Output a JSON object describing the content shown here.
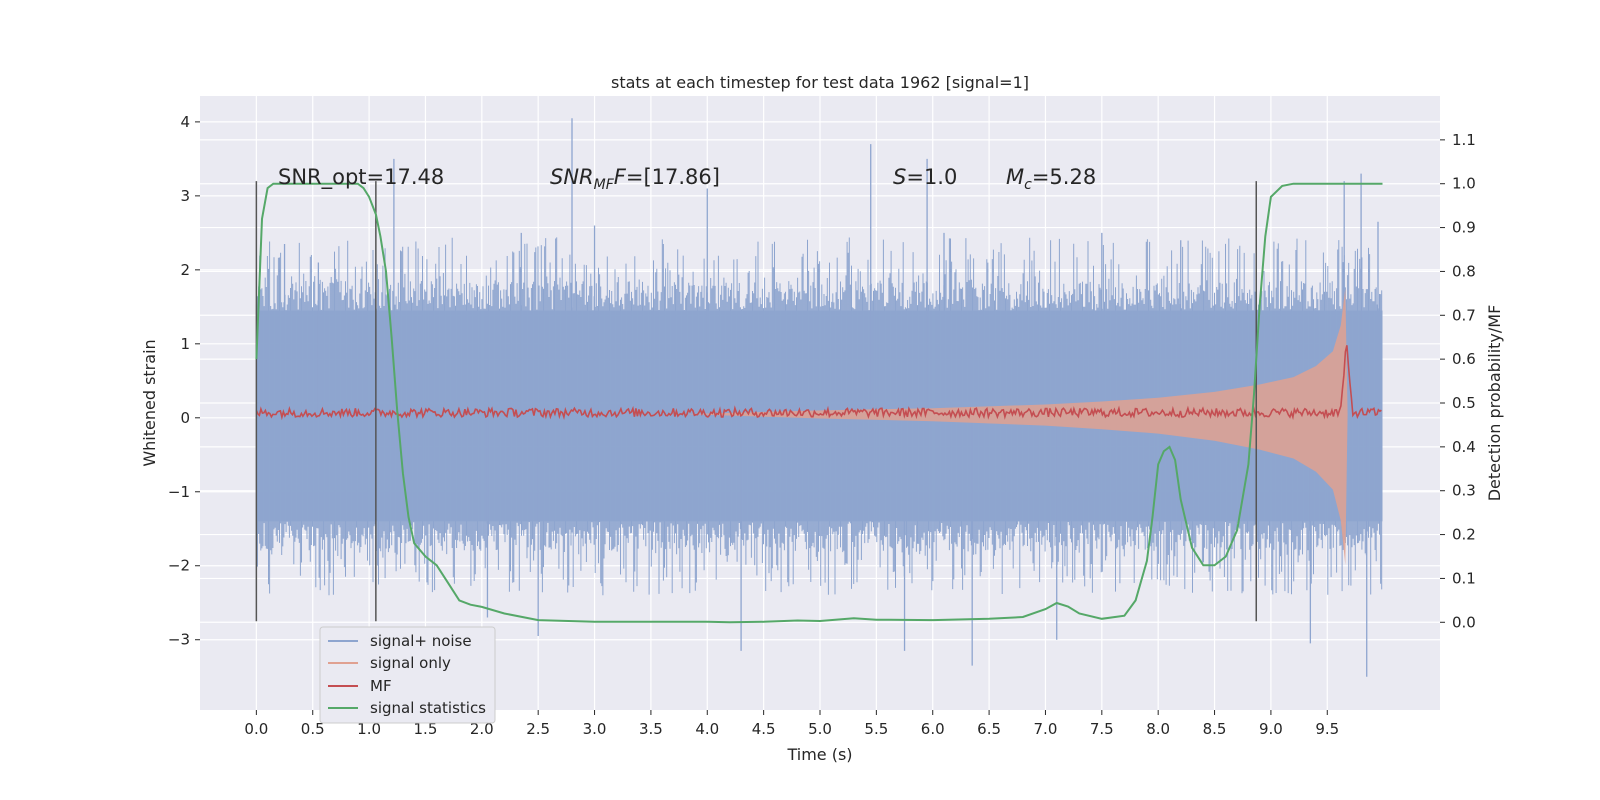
{
  "chart_data": {
    "type": "line",
    "title": "stats at each timestep for test data 1962 [signal=1]",
    "xlabel": "Time (s)",
    "ylabel": "Whitened strain",
    "ylabel_right": "Detection probability/MF",
    "xlim": [
      -0.5,
      10.5
    ],
    "ylim": [
      -3.95,
      4.35
    ],
    "ylim_right": [
      -0.2,
      1.2
    ],
    "x_ticks": [
      "0.0",
      "0.5",
      "1.0",
      "1.5",
      "2.0",
      "2.5",
      "3.0",
      "3.5",
      "4.0",
      "4.5",
      "5.0",
      "5.5",
      "6.0",
      "6.5",
      "7.0",
      "7.5",
      "8.0",
      "8.5",
      "9.0",
      "9.5"
    ],
    "x_tick_values": [
      0.0,
      0.5,
      1.0,
      1.5,
      2.0,
      2.5,
      3.0,
      3.5,
      4.0,
      4.5,
      5.0,
      5.5,
      6.0,
      6.5,
      7.0,
      7.5,
      8.0,
      8.5,
      9.0,
      9.5
    ],
    "y_ticks": [
      "4",
      "3",
      "2",
      "1",
      "0",
      "−1",
      "−2",
      "−3"
    ],
    "y_tick_values": [
      4,
      3,
      2,
      1,
      0,
      -1,
      -2,
      -3
    ],
    "y_right_ticks": [
      "1.1",
      "1.0",
      "0.9",
      "0.8",
      "0.7",
      "0.6",
      "0.5",
      "0.4",
      "0.3",
      "0.2",
      "0.1",
      "0.0"
    ],
    "y_right_tick_values": [
      1.1,
      1.0,
      0.9,
      0.8,
      0.7,
      0.6,
      0.5,
      0.4,
      0.3,
      0.2,
      0.1,
      0.0
    ],
    "grid": true,
    "legend_position": "lower-left",
    "annotations": [
      {
        "id": "snr_opt",
        "text": "SNR_opt=17.48",
        "x": 0.2,
        "y": 3.22
      },
      {
        "id": "snr_mf",
        "prefix": "SNR",
        "sub": "MF",
        "suffix": "=[17.86]",
        "x": 2.6,
        "y": 3.22
      },
      {
        "id": "s",
        "prefix": "S",
        "suffix": "=1.0",
        "x": 5.6,
        "y": 3.22
      },
      {
        "id": "mc",
        "prefix": "M",
        "sub": "c",
        "suffix": "=5.28",
        "x": 6.6,
        "y": 3.22
      }
    ],
    "vertical_markers": [
      0.0,
      1.06,
      8.87
    ],
    "vertical_marker_range": [
      -2.75,
      3.2
    ],
    "series": [
      {
        "name": "signal+ noise",
        "color": "#8ea5cf",
        "axis": "left",
        "style": "noise-band",
        "x_range": [
          0.0,
          9.99
        ],
        "dense_envelope": [
          [
            0.0,
            -1.4,
            1.45
          ],
          [
            9.99,
            -1.4,
            1.45
          ]
        ],
        "spikes": [
          [
            0.25,
            2.35
          ],
          [
            0.55,
            2.1
          ],
          [
            1.22,
            3.5
          ],
          [
            2.05,
            -2.7
          ],
          [
            2.35,
            2.5
          ],
          [
            2.5,
            -2.95
          ],
          [
            2.8,
            4.05
          ],
          [
            3.0,
            2.6
          ],
          [
            4.0,
            3.1
          ],
          [
            4.3,
            -3.15
          ],
          [
            5.45,
            3.7
          ],
          [
            5.75,
            -3.15
          ],
          [
            5.95,
            3.5
          ],
          [
            6.1,
            2.5
          ],
          [
            6.35,
            -3.35
          ],
          [
            7.1,
            -3.0
          ],
          [
            7.5,
            2.5
          ],
          [
            8.2,
            2.4
          ],
          [
            9.35,
            -3.05
          ],
          [
            9.65,
            3.2
          ],
          [
            9.8,
            3.3
          ],
          [
            9.85,
            -3.5
          ],
          [
            9.95,
            2.65
          ]
        ]
      },
      {
        "name": "signal only",
        "color": "#e0a191",
        "axis": "left",
        "style": "chirp",
        "x": [
          3.8,
          5.0,
          6.0,
          7.0,
          7.5,
          8.0,
          8.5,
          8.9,
          9.2,
          9.4,
          9.55,
          9.62,
          9.66,
          9.68
        ],
        "amplitude": [
          0.0,
          0.05,
          0.08,
          0.13,
          0.17,
          0.22,
          0.3,
          0.4,
          0.5,
          0.65,
          0.85,
          1.2,
          1.7,
          0.0
        ]
      },
      {
        "name": "MF",
        "color": "#c44e52",
        "axis": "left",
        "style": "jitter",
        "x_range": [
          0.0,
          9.99
        ],
        "center": 0.07,
        "jitter": 0.06,
        "peak": [
          9.67,
          1.0
        ]
      },
      {
        "name": "signal statistics",
        "color": "#55a868",
        "axis": "right",
        "x": [
          0.0,
          0.05,
          0.1,
          0.15,
          0.2,
          0.4,
          0.6,
          0.8,
          0.9,
          0.95,
          1.0,
          1.06,
          1.1,
          1.15,
          1.2,
          1.25,
          1.3,
          1.35,
          1.4,
          1.5,
          1.6,
          1.7,
          1.8,
          1.9,
          2.0,
          2.2,
          2.5,
          3.0,
          3.5,
          4.0,
          4.2,
          4.5,
          4.8,
          5.0,
          5.3,
          5.5,
          6.0,
          6.5,
          6.8,
          7.0,
          7.1,
          7.2,
          7.3,
          7.5,
          7.7,
          7.8,
          7.9,
          7.95,
          8.0,
          8.05,
          8.1,
          8.15,
          8.2,
          8.3,
          8.4,
          8.5,
          8.6,
          8.7,
          8.8,
          8.85,
          8.9,
          8.95,
          9.0,
          9.1,
          9.2,
          9.5,
          9.99
        ],
        "y": [
          0.6,
          0.92,
          0.99,
          1.0,
          1.0,
          1.0,
          1.0,
          1.0,
          1.0,
          0.99,
          0.97,
          0.93,
          0.88,
          0.8,
          0.65,
          0.48,
          0.34,
          0.24,
          0.18,
          0.15,
          0.13,
          0.09,
          0.05,
          0.04,
          0.035,
          0.02,
          0.005,
          0.001,
          0.001,
          0.001,
          0.0,
          0.001,
          0.004,
          0.003,
          0.009,
          0.006,
          0.005,
          0.008,
          0.012,
          0.03,
          0.044,
          0.036,
          0.02,
          0.008,
          0.015,
          0.05,
          0.14,
          0.24,
          0.36,
          0.39,
          0.4,
          0.37,
          0.28,
          0.17,
          0.13,
          0.13,
          0.15,
          0.21,
          0.36,
          0.52,
          0.72,
          0.88,
          0.97,
          0.995,
          1.0,
          1.0,
          1.0
        ]
      }
    ]
  }
}
